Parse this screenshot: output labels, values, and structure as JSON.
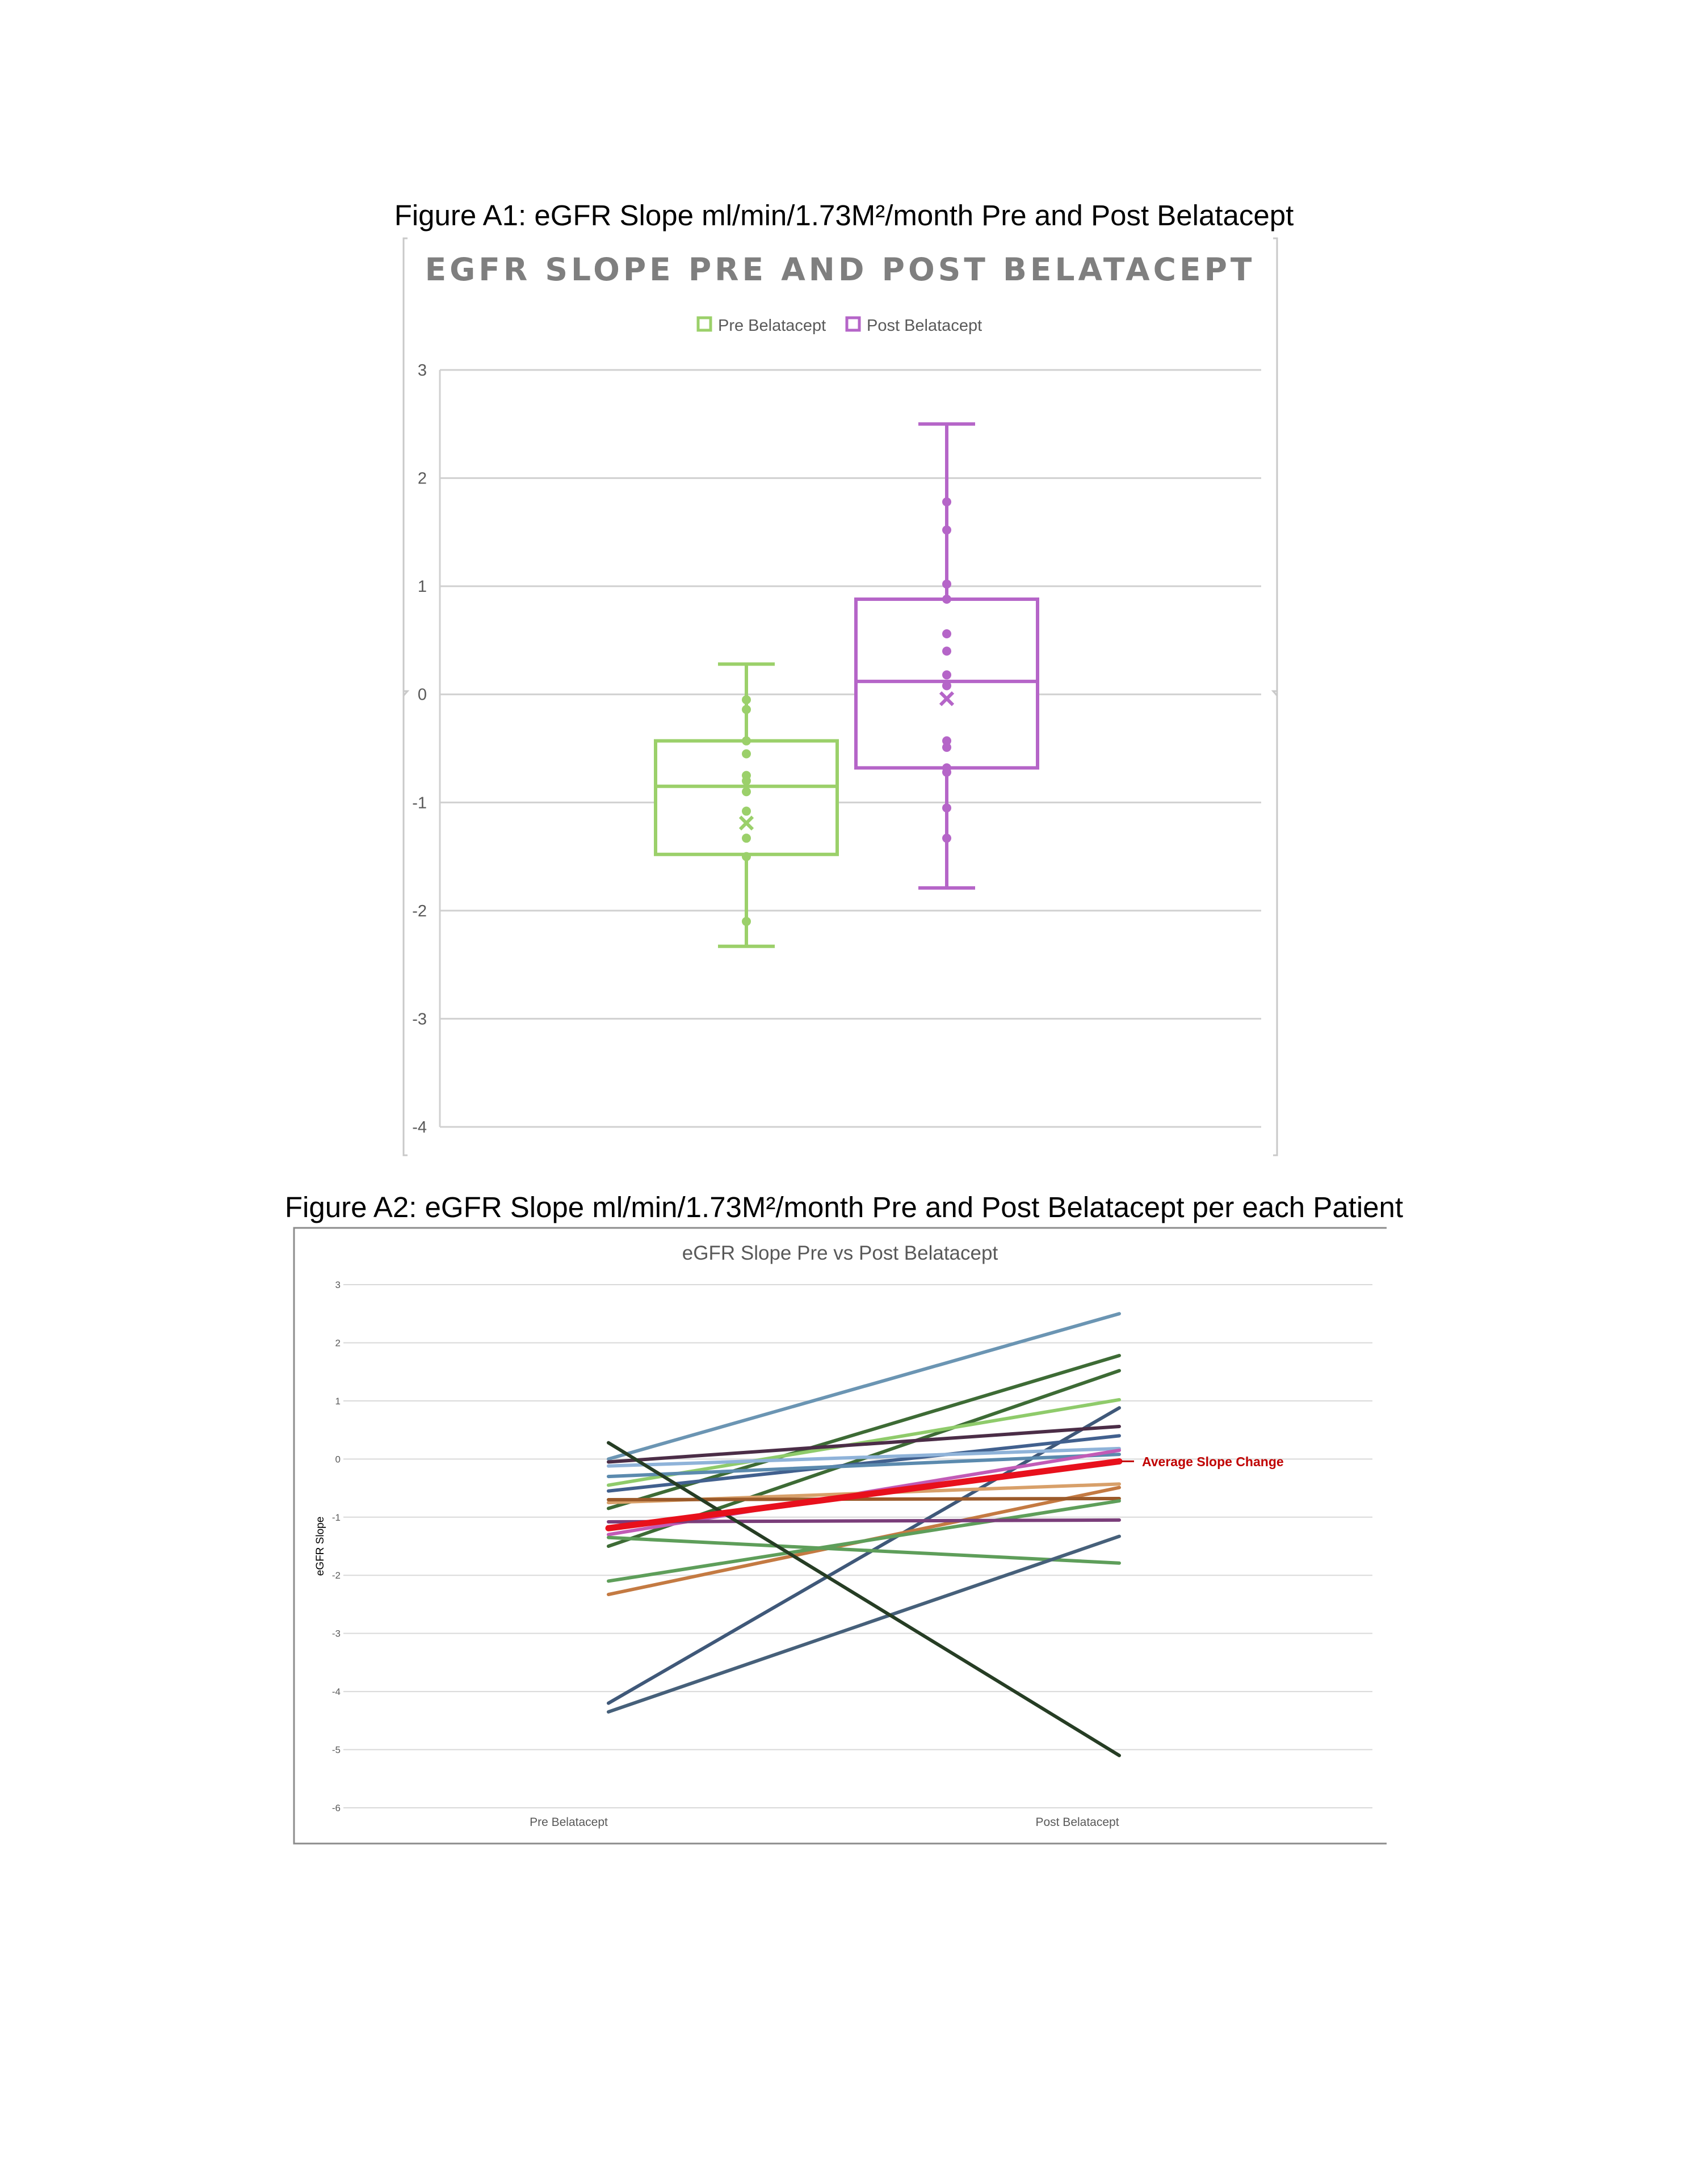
{
  "captions": {
    "a1": "Figure A1: eGFR Slope ml/min/1.73M²/month Pre and Post Belatacept",
    "a2": "Figure A2: eGFR Slope ml/min/1.73M²/month Pre and Post Belatacept per each Patient"
  },
  "chart_data": [
    {
      "type": "box",
      "title": "EGFR SLOPE PRE AND POST BELATACEPT",
      "ylim": [
        -4,
        3
      ],
      "y_ticks": [
        "3",
        "2",
        "1",
        "0",
        "-1",
        "-2",
        "-3",
        "-4"
      ],
      "grid": true,
      "legend_position": "top",
      "series": [
        {
          "name": "Pre Belatacept",
          "color": "#9bd06a",
          "min": -2.33,
          "q1": -1.48,
          "median": -0.85,
          "q3": -0.43,
          "max": 0.28,
          "mean": -1.19,
          "points": [
            -0.05,
            -0.14,
            -0.43,
            -0.55,
            -0.75,
            -0.8,
            -0.9,
            -1.08,
            -1.33,
            -1.5,
            -2.1
          ]
        },
        {
          "name": "Post Belatacept",
          "color": "#b565c8",
          "min": -1.79,
          "q1": -0.68,
          "median": 0.12,
          "q3": 0.88,
          "max": 2.5,
          "mean": -0.04,
          "points": [
            1.78,
            1.52,
            1.02,
            0.88,
            0.56,
            0.4,
            0.18,
            0.08,
            -0.43,
            -0.49,
            -0.68,
            -0.72,
            -1.05,
            -1.33
          ]
        }
      ]
    },
    {
      "type": "line",
      "title": "eGFR Slope Pre vs Post Belatacept",
      "ylabel": "eGFR Slope",
      "categories": [
        "Pre Belatacept",
        "Post Belatacept"
      ],
      "ylim": [
        -6,
        3
      ],
      "y_ticks": [
        "3",
        "2",
        "1",
        "0",
        "-1",
        "-2",
        "-3",
        "-4",
        "-5",
        "-6"
      ],
      "grid": true,
      "annotation": "Average Slope Change",
      "series": [
        {
          "values": [
            0.0,
            2.5
          ],
          "color": "#6b95b3"
        },
        {
          "values": [
            -0.85,
            1.78
          ],
          "color": "#3d6b35"
        },
        {
          "values": [
            -1.5,
            1.52
          ],
          "color": "#3d6b35"
        },
        {
          "values": [
            -0.45,
            1.02
          ],
          "color": "#8fcb6b"
        },
        {
          "values": [
            -4.2,
            0.88
          ],
          "color": "#3f5879"
        },
        {
          "values": [
            -0.05,
            0.56
          ],
          "color": "#4b2d47"
        },
        {
          "values": [
            -0.55,
            0.4
          ],
          "color": "#41608e"
        },
        {
          "values": [
            -0.12,
            0.18
          ],
          "color": "#8fb3d9"
        },
        {
          "values": [
            -0.3,
            0.08
          ],
          "color": "#5b8aae"
        },
        {
          "values": [
            -1.3,
            0.15
          ],
          "color": "#c25bb6"
        },
        {
          "values": [
            -0.75,
            -0.43
          ],
          "color": "#d8a06a"
        },
        {
          "values": [
            -2.33,
            -0.49
          ],
          "color": "#c47a42"
        },
        {
          "values": [
            -0.7,
            -0.68
          ],
          "color": "#9b5a2a"
        },
        {
          "values": [
            -2.1,
            -0.72
          ],
          "color": "#5e9e5a"
        },
        {
          "values": [
            -1.08,
            -1.05
          ],
          "color": "#7a3e7a"
        },
        {
          "values": [
            -1.35,
            -1.79
          ],
          "color": "#5e9e5a"
        },
        {
          "values": [
            -4.35,
            -1.33
          ],
          "color": "#46607a"
        },
        {
          "values": [
            0.28,
            -5.1
          ],
          "color": "#263d24"
        },
        {
          "values": [
            -1.19,
            -0.04
          ],
          "color": "#e8101c",
          "average": true
        }
      ]
    }
  ]
}
